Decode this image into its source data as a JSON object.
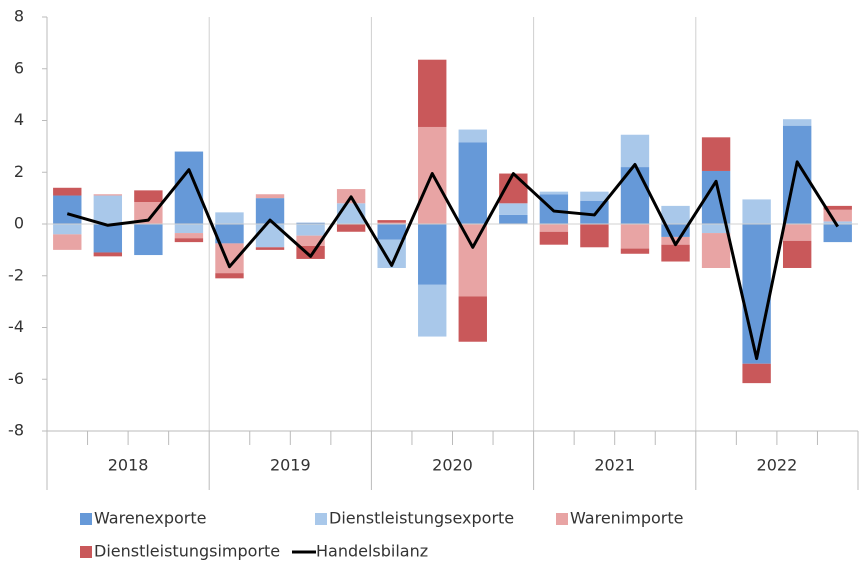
{
  "chart_data": {
    "type": "stacked_bar_line",
    "categories": [
      null,
      null,
      null,
      null,
      null,
      null,
      null,
      null,
      null,
      null,
      null,
      null,
      null,
      null,
      null,
      null,
      null,
      null,
      null,
      null
    ],
    "groups": [
      "2018",
      "2019",
      "2020",
      "2021",
      "2022"
    ],
    "series": [
      {
        "name": "Warenexporte",
        "color": "#6699d8",
        "values": [
          1.1,
          -1.1,
          -1.2,
          2.8,
          -0.75,
          1.0,
          0.05,
          0,
          -0.6,
          -2.35,
          3.15,
          0.35,
          1.15,
          0.9,
          2.2,
          -0.5,
          2.05,
          -5.4,
          3.8,
          -0.7
        ]
      },
      {
        "name": "Dienstleistungsexporte",
        "color": "#a9c8ea",
        "values": [
          -0.4,
          1.1,
          0,
          -0.35,
          0.45,
          -0.9,
          -0.45,
          0.8,
          -1.1,
          -2.0,
          0.5,
          0.45,
          0.1,
          0.35,
          1.25,
          0.7,
          -0.35,
          0.95,
          0.25,
          0.1
        ]
      },
      {
        "name": "Warenimporte",
        "color": "#e8a4a4",
        "values": [
          -0.6,
          0.05,
          0.85,
          -0.2,
          -1.15,
          0.15,
          -0.4,
          0.55,
          0.05,
          3.75,
          -2.8,
          0,
          -0.3,
          0,
          -0.95,
          -0.3,
          -1.35,
          0,
          -0.65,
          0.45
        ]
      },
      {
        "name": "Dienstleistungsimporte",
        "color": "#c9585a",
        "values": [
          0.3,
          -0.15,
          0.45,
          -0.15,
          -0.2,
          -0.1,
          -0.5,
          -0.3,
          0.1,
          2.6,
          -1.75,
          1.15,
          -0.5,
          -0.9,
          -0.2,
          -0.65,
          1.3,
          -0.75,
          -1.05,
          0.15
        ]
      },
      {
        "name": "Handelsbilanz",
        "type": "line",
        "color": "#000000",
        "values": [
          0.4,
          -0.05,
          0.15,
          2.1,
          -1.65,
          0.15,
          -1.25,
          1.05,
          -1.6,
          1.95,
          -0.9,
          1.95,
          0.5,
          0.35,
          2.3,
          -0.8,
          1.65,
          -5.2,
          2.4,
          -0.1
        ]
      }
    ],
    "ylim": [
      -8,
      8
    ],
    "yticks": [
      -8,
      -6,
      -4,
      -2,
      0,
      2,
      4,
      6,
      8
    ]
  }
}
